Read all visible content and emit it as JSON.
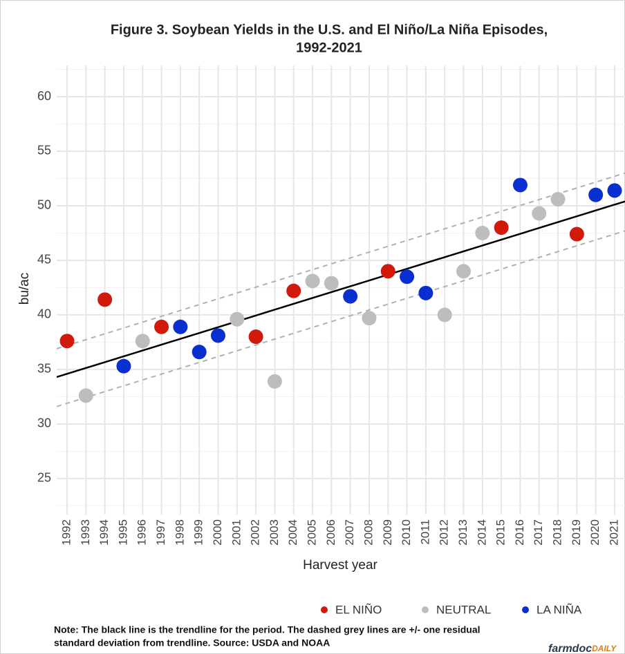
{
  "chart_data": {
    "type": "scatter",
    "title": [
      "Figure 3. Soybean Yields in the U.S. and El Niño/La Niña Episodes,",
      "1992-2021"
    ],
    "x_label": "Harvest year",
    "y_label": "bu/ac",
    "xlim": [
      1991.45,
      2021.55
    ],
    "ylim": [
      21.7,
      62.85
    ],
    "xticks": [
      1992,
      1993,
      1994,
      1995,
      1996,
      1997,
      1998,
      1999,
      2000,
      2001,
      2002,
      2003,
      2004,
      2005,
      2006,
      2007,
      2008,
      2009,
      2010,
      2011,
      2012,
      2013,
      2014,
      2015,
      2016,
      2017,
      2018,
      2019,
      2020,
      2021
    ],
    "yticks": [
      25,
      30,
      35,
      40,
      45,
      50,
      55,
      60
    ],
    "yminorticks": [
      22.5,
      27.5,
      32.5,
      37.5,
      42.5,
      47.5,
      52.5,
      57.5,
      62.5
    ],
    "grid": true,
    "series": [
      {
        "name": "EL NIÑO",
        "color": "#d11a0a",
        "x": [
          1992,
          1994,
          1997,
          2002,
          2004,
          2009,
          2015,
          2019
        ],
        "values": [
          37.6,
          41.4,
          38.9,
          38.0,
          42.2,
          44.0,
          48.0,
          47.4
        ]
      },
      {
        "name": "NEUTRAL",
        "color": "#bdbdbd",
        "x": [
          1993,
          1996,
          2001,
          2003,
          2005,
          2006,
          2008,
          2012,
          2013,
          2014,
          2017,
          2018
        ],
        "values": [
          32.6,
          37.6,
          39.6,
          33.9,
          43.1,
          42.9,
          39.7,
          40.0,
          44.0,
          47.5,
          49.3,
          50.6
        ]
      },
      {
        "name": "LA NIÑA",
        "color": "#0a2fd1",
        "x": [
          1995,
          1998,
          1999,
          2000,
          2007,
          2010,
          2011,
          2016,
          2020,
          2021
        ],
        "values": [
          35.3,
          38.9,
          36.6,
          38.1,
          41.7,
          43.5,
          42.0,
          51.9,
          51.0,
          51.4
        ]
      }
    ],
    "trendline": {
      "color": "#000000",
      "x": [
        1991.45,
        2021.55
      ],
      "values": [
        34.3,
        50.4
      ]
    },
    "band_upper": {
      "color": "#b0b0b0",
      "x": [
        1991.45,
        2021.55
      ],
      "values": [
        36.9,
        53.0
      ]
    },
    "band_lower": {
      "color": "#b0b0b0",
      "x": [
        1991.45,
        2021.55
      ],
      "values": [
        31.6,
        47.7
      ]
    },
    "legend": "bottom",
    "note": [
      "Note: The black line is the trendline for the period. The dashed grey lines are +/- one residual",
      "standard deviation from trendline. Source: USDA and NOAA"
    ],
    "logo": {
      "main": "farmdoc",
      "accent": "DAILY"
    }
  }
}
